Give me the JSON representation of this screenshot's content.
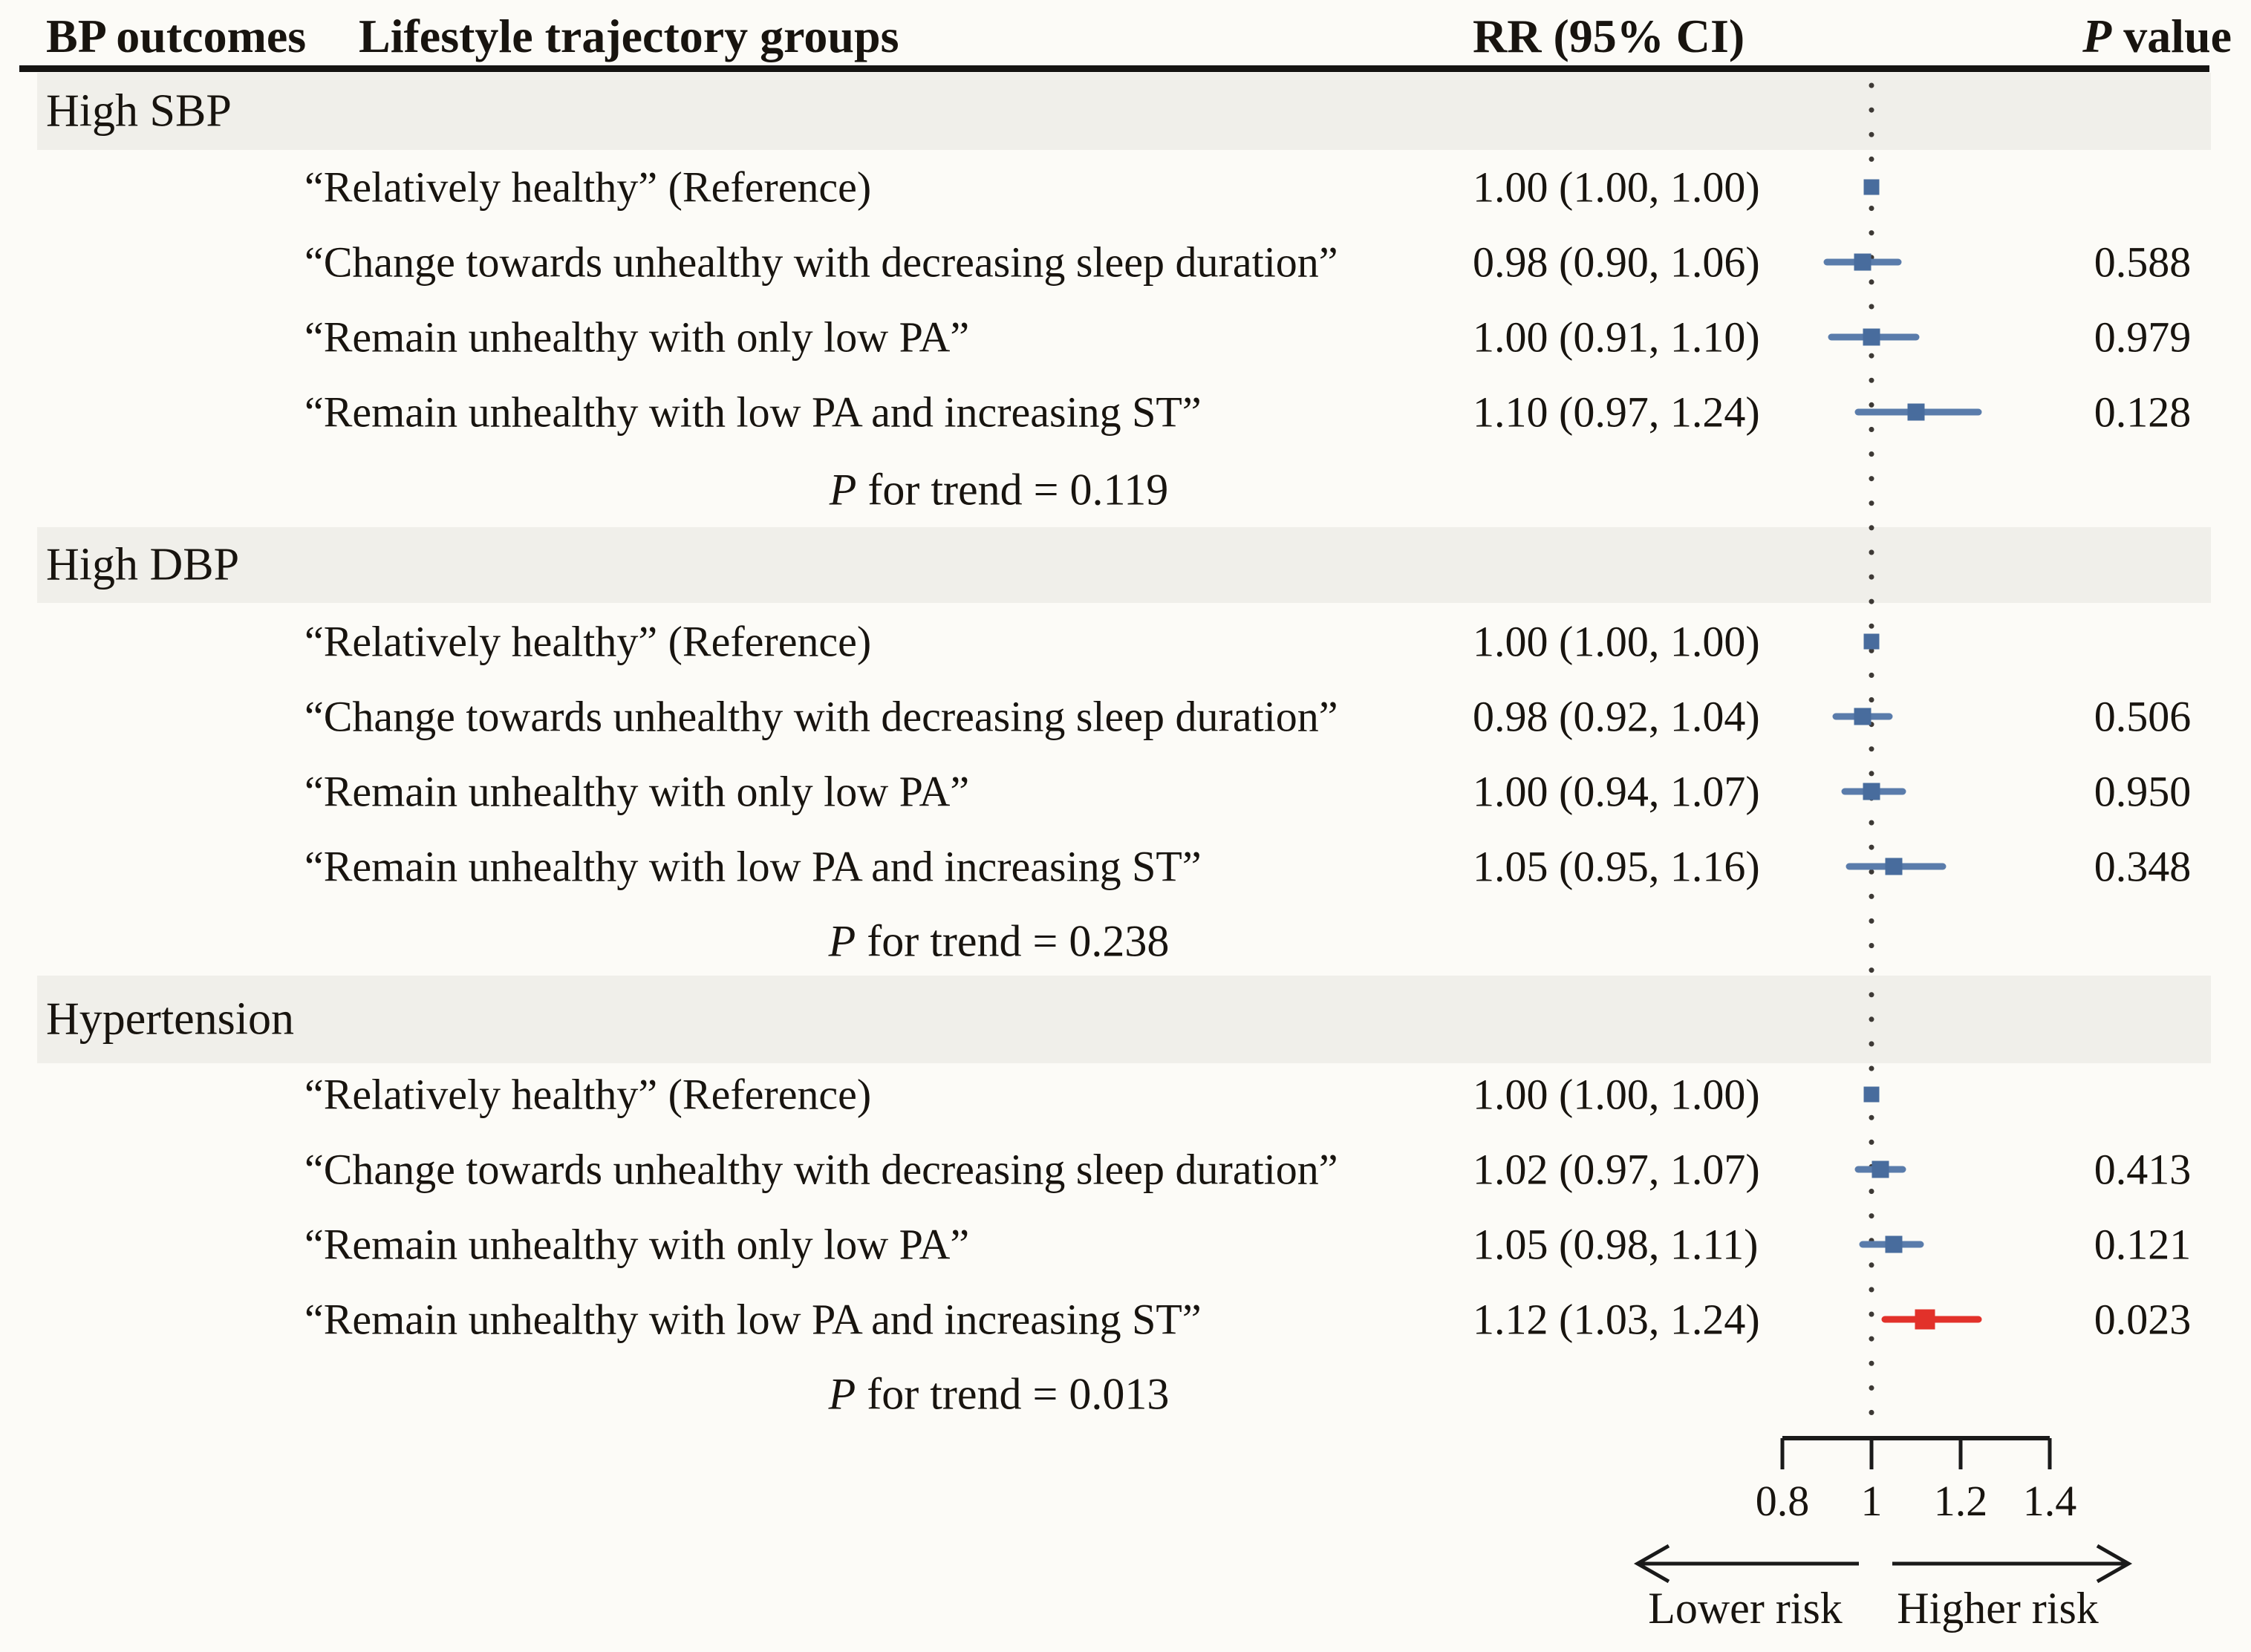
{
  "header": {
    "col_bp": "BP outcomes",
    "col_lifestyle": "Lifestyle  trajectory groups",
    "col_rr": "RR (95% CI)",
    "col_p_italic": "P",
    "col_p_rest": " value"
  },
  "p_trend_italic": "P",
  "p_trend_connector": " for trend = ",
  "chart_data": {
    "type": "scatter",
    "variant": "forest-plot",
    "title": "",
    "xlabel_ticks": [
      "0.8",
      "1",
      "1.2",
      "1.4"
    ],
    "tick_values": [
      0.8,
      1.0,
      1.2,
      1.4
    ],
    "xlim": [
      0.8,
      1.4
    ],
    "reference_line": 1.0,
    "lower_label": "Lower risk",
    "higher_label": "Higher risk",
    "sections": [
      {
        "title": "High SBP",
        "p_trend": "0.119",
        "rows": [
          {
            "label": "“Relatively healthy” (Reference)",
            "rr_text": "1.00 (1.00, 1.00)",
            "p": "",
            "rr": 1.0,
            "lo": 1.0,
            "hi": 1.0,
            "color": "blue",
            "point_only": true
          },
          {
            "label": "“Change towards unhealthy with decreasing sleep duration”",
            "rr_text": "0.98 (0.90, 1.06)",
            "p": "0.588",
            "rr": 0.98,
            "lo": 0.9,
            "hi": 1.06,
            "color": "blue"
          },
          {
            "label": "“Remain unhealthy with only low PA”",
            "rr_text": "1.00 (0.91, 1.10)",
            "p": "0.979",
            "rr": 1.0,
            "lo": 0.91,
            "hi": 1.1,
            "color": "blue"
          },
          {
            "label": "“Remain unhealthy with low PA and increasing ST”",
            "rr_text": "1.10 (0.97, 1.24)",
            "p": "0.128",
            "rr": 1.1,
            "lo": 0.97,
            "hi": 1.24,
            "color": "blue"
          }
        ]
      },
      {
        "title": "High DBP",
        "p_trend": "0.238",
        "rows": [
          {
            "label": "“Relatively healthy” (Reference)",
            "rr_text": "1.00 (1.00, 1.00)",
            "p": "",
            "rr": 1.0,
            "lo": 1.0,
            "hi": 1.0,
            "color": "blue",
            "point_only": true
          },
          {
            "label": "“Change towards unhealthy with decreasing sleep duration”",
            "rr_text": "0.98 (0.92, 1.04)",
            "p": "0.506",
            "rr": 0.98,
            "lo": 0.92,
            "hi": 1.04,
            "color": "blue"
          },
          {
            "label": "“Remain unhealthy with only low PA”",
            "rr_text": "1.00 (0.94, 1.07)",
            "p": "0.950",
            "rr": 1.0,
            "lo": 0.94,
            "hi": 1.07,
            "color": "blue"
          },
          {
            "label": "“Remain unhealthy with low PA and increasing ST”",
            "rr_text": "1.05 (0.95, 1.16)",
            "p": "0.348",
            "rr": 1.05,
            "lo": 0.95,
            "hi": 1.16,
            "color": "blue"
          }
        ]
      },
      {
        "title": "Hypertension",
        "p_trend": "0.013",
        "rows": [
          {
            "label": "“Relatively healthy” (Reference)",
            "rr_text": "1.00 (1.00, 1.00)",
            "p": "",
            "rr": 1.0,
            "lo": 1.0,
            "hi": 1.0,
            "color": "blue",
            "point_only": true
          },
          {
            "label": "“Change towards unhealthy with decreasing sleep duration”",
            "rr_text": "1.02 (0.97, 1.07)",
            "p": "0.413",
            "rr": 1.02,
            "lo": 0.97,
            "hi": 1.07,
            "color": "blue"
          },
          {
            "label": "“Remain unhealthy with only low PA”",
            "rr_text": "1.05 (0.98, 1.11)",
            "p": "0.121",
            "rr": 1.05,
            "lo": 0.98,
            "hi": 1.11,
            "color": "blue"
          },
          {
            "label": "“Remain unhealthy with low PA and increasing ST”",
            "rr_text": "1.12 (1.03, 1.24)",
            "p": "0.023",
            "rr": 1.12,
            "lo": 1.03,
            "hi": 1.24,
            "color": "red"
          }
        ]
      }
    ]
  },
  "colors": {
    "blue_marker": "#486C9D",
    "blue_line": "#5A7CAB",
    "red_marker": "#E2312A",
    "red_line": "#E2312A",
    "band": "#F0EFEA",
    "background": "#FCFBF7",
    "text": "#18140F",
    "dotted_line": "#3D3935",
    "rule": "#151412"
  }
}
